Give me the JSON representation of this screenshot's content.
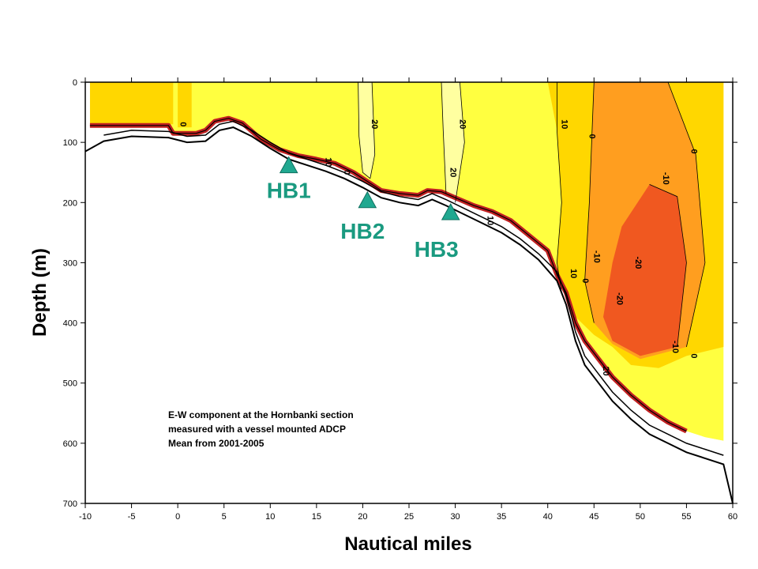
{
  "chart_data": {
    "type": "contour",
    "xlabel": "Nautical miles",
    "ylabel": "Depth (m)",
    "xlim": [
      -10,
      60
    ],
    "ylim": [
      700,
      0
    ],
    "x_ticks": [
      "-10",
      "-5",
      "0",
      "5",
      "10",
      "15",
      "20",
      "25",
      "30",
      "35",
      "40",
      "45",
      "50",
      "55",
      "60"
    ],
    "y_ticks": [
      "0",
      "100",
      "200",
      "300",
      "400",
      "500",
      "600",
      "700"
    ],
    "caption": [
      "E-W component at the Hornbanki section",
      "measured with a vessel mounted ADCP",
      "Mean  from 2001-2005"
    ],
    "stations": [
      {
        "name": "HB1",
        "x": 12,
        "depth": 140
      },
      {
        "name": "HB2",
        "x": 20.5,
        "depth": 198
      },
      {
        "name": "HB3",
        "x": 29.5,
        "depth": 218
      }
    ],
    "contour_levels": [
      -20,
      -10,
      0,
      10,
      20
    ],
    "contour_labels": [
      {
        "text": "0",
        "x": 0.3,
        "depth": 70
      },
      {
        "text": "20",
        "x": 21,
        "depth": 70
      },
      {
        "text": "20",
        "x": 30.5,
        "depth": 70
      },
      {
        "text": "20",
        "x": 29.5,
        "depth": 150
      },
      {
        "text": "10",
        "x": 41.5,
        "depth": 70
      },
      {
        "text": "0",
        "x": 44.5,
        "depth": 90
      },
      {
        "text": "0",
        "x": 55.5,
        "depth": 115
      },
      {
        "text": "-10",
        "x": 52.5,
        "depth": 160
      },
      {
        "text": "-10",
        "x": 45,
        "depth": 290
      },
      {
        "text": "-20",
        "x": 49.5,
        "depth": 300
      },
      {
        "text": "-20",
        "x": 47.5,
        "depth": 360
      },
      {
        "text": "-10",
        "x": 53.5,
        "depth": 440
      },
      {
        "text": "0",
        "x": 55.5,
        "depth": 455
      },
      {
        "text": "20",
        "x": 46,
        "depth": 480
      },
      {
        "text": "10",
        "x": 16,
        "depth": 133
      },
      {
        "text": "0",
        "x": 18,
        "depth": 150
      },
      {
        "text": "10",
        "x": 33.5,
        "depth": 230
      },
      {
        "text": "10",
        "x": 42.5,
        "depth": 318
      },
      {
        "text": "0",
        "x": 43.8,
        "depth": 330
      }
    ],
    "colors": {
      "plus20": "#FFFFA0",
      "plus10": "#FFFF40",
      "zero": "#FFD700",
      "minus10": "#FF9E1F",
      "minus20": "#F05820",
      "boundary": "#C02020",
      "station_marker": "#20A890"
    },
    "grid": false
  }
}
